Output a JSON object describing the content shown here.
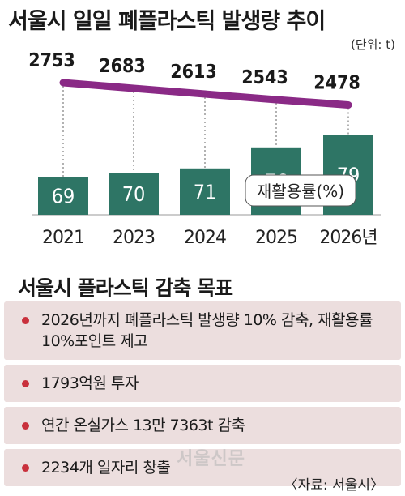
{
  "header": {
    "title": "서울시 일일 폐플라스틱 발생량 추이",
    "unit": "(단위: t)"
  },
  "chart_data": {
    "type": "bar",
    "categories": [
      "2021",
      "2023",
      "2024",
      "2025",
      "2026년"
    ],
    "series": [
      {
        "name": "재활용률(%)",
        "type": "bar",
        "values": [
          69,
          70,
          71,
          76,
          79
        ]
      },
      {
        "name": "",
        "type": "line",
        "values": [
          2753,
          2683,
          2613,
          2543,
          2478
        ]
      }
    ],
    "legend": {
      "label": "재활용률(%)",
      "placement": "bottom-right"
    },
    "colors": {
      "bar": "#2e7565",
      "line": "#8a2a86",
      "guide": "#666666"
    },
    "grid": false
  },
  "section": {
    "title": "서울시 플라스틱 감축 목표",
    "items": [
      {
        "text": "2026년까지 폐플라스틱 발생량 10% 감축, 재활용률 10%포인트 제고"
      },
      {
        "text": "1793억원 투자"
      },
      {
        "text": "연간 온실가스 13만 7363t 감축"
      },
      {
        "text": "2234개 일자리 창출"
      }
    ],
    "bullet_color": "#c9303c",
    "box_color": "#ecdede"
  },
  "watermark": "서울신문",
  "source": "〈자료: 서울시〉"
}
